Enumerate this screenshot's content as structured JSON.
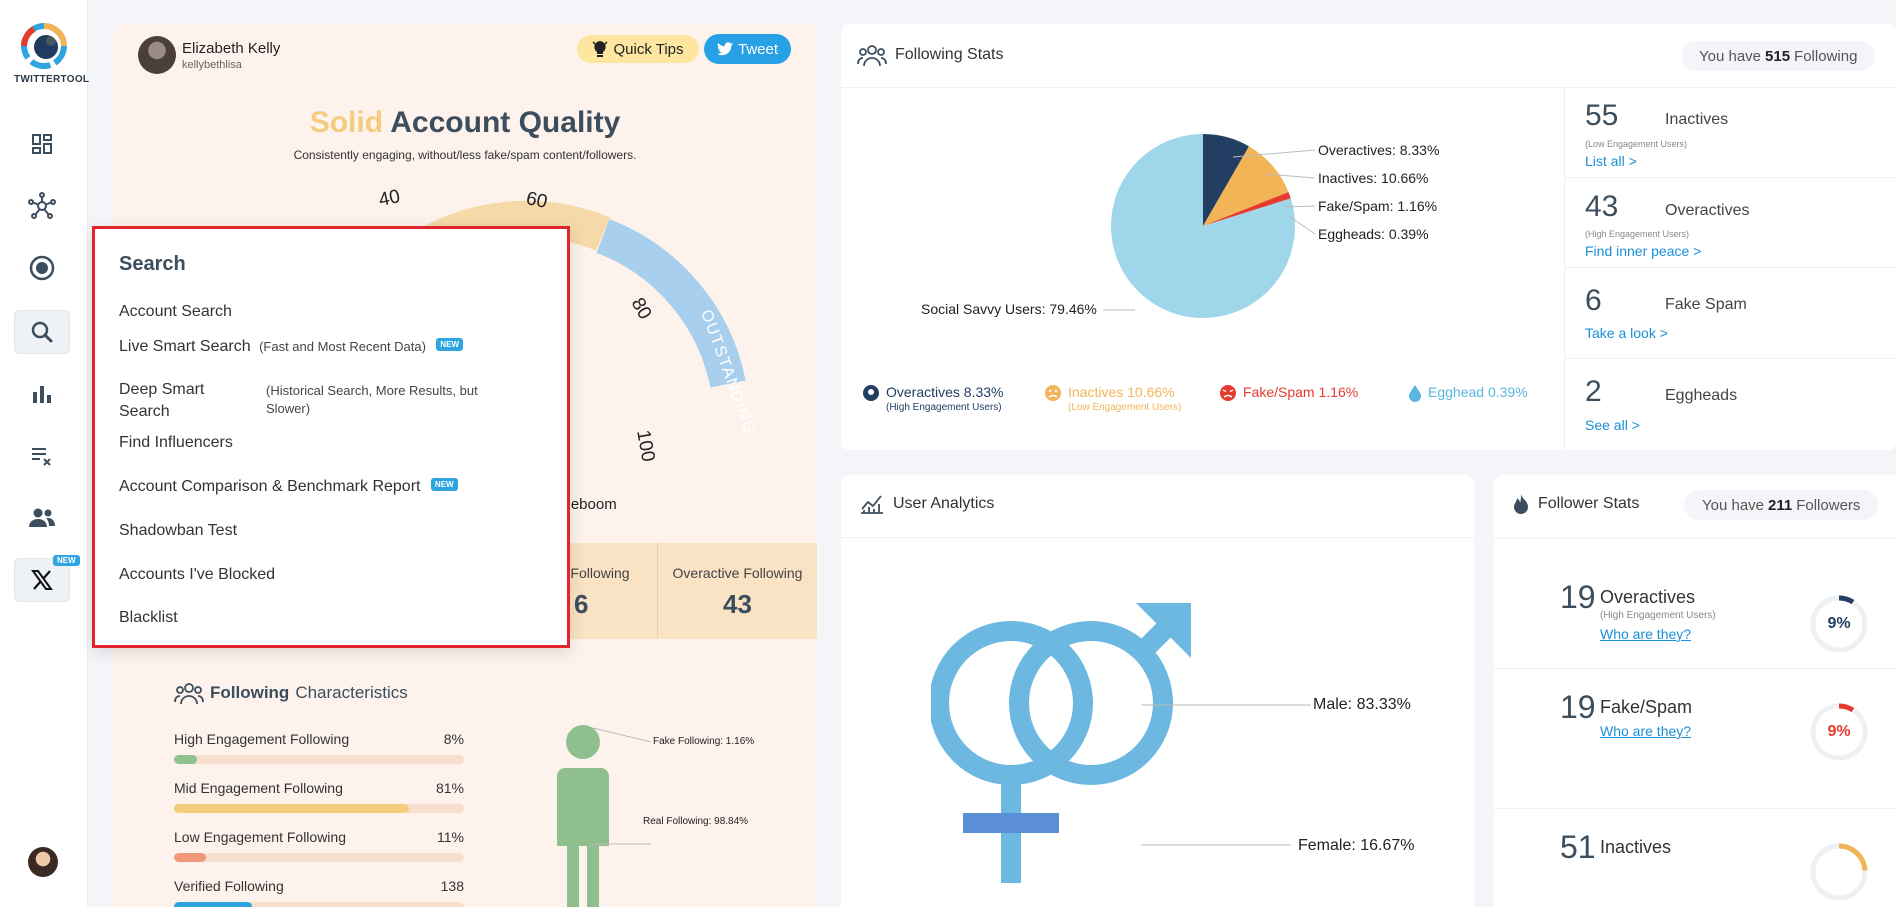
{
  "sidebar": {
    "logo_text": "TWITTERTOOL",
    "new_badge": "NEW",
    "icons": [
      "dashboard-icon",
      "network-icon",
      "target-icon",
      "search-icon",
      "bar-chart-icon",
      "list-remove-icon",
      "users-icon",
      "x-logo-icon"
    ]
  },
  "quality": {
    "user_name": "Elizabeth Kelly",
    "user_handle": "kellybethlisa",
    "quick_tips": "Quick Tips",
    "tweet": "Tweet",
    "title_highlight": "Solid",
    "title_rest": "Account Quality",
    "subtitle": "Consistently engaging, without/less fake/spam content/followers.",
    "gauge_labels": [
      "40",
      "60",
      "80",
      "100"
    ],
    "gauge_band": "OUTSTANDING",
    "circleboom_text": "rcleboom",
    "strip": [
      {
        "label": "Following",
        "value": "6"
      },
      {
        "label": "Overactive Following",
        "value": "43"
      }
    ],
    "characteristics": {
      "title_bold": "Following",
      "title_rest": "Characteristics",
      "bars": [
        {
          "label": "High Engagement Following",
          "value": "8%",
          "fill": 0.08,
          "color": "#8fc08f"
        },
        {
          "label": "Mid Engagement Following",
          "value": "81%",
          "fill": 0.81,
          "color": "#f5cc7e"
        },
        {
          "label": "Low Engagement Following",
          "value": "11%",
          "fill": 0.11,
          "color": "#f0997a"
        },
        {
          "label": "Verified Following",
          "value": "138",
          "fill": 0.27,
          "color": "#2ea5e0"
        }
      ],
      "fake_note": "Fake Following: 1.16%",
      "real_note": "Real Following: 98.84%"
    }
  },
  "following_stats": {
    "title": "Following Stats",
    "pill_pre": "You have",
    "pill_num": "515",
    "pill_post": "Following",
    "chart_data": {
      "type": "pie",
      "labels": [
        "Overactives",
        "Inactives",
        "Fake/Spam",
        "Eggheads",
        "Social Savvy Users"
      ],
      "values": [
        8.33,
        10.66,
        1.16,
        0.39,
        79.46
      ],
      "colors": [
        "#223e63",
        "#f2b457",
        "#e53a2e",
        "#a0d2e8",
        "#a0d6e9"
      ]
    },
    "pie_labels": {
      "overactives": "Overactives: 8.33%",
      "inactives": "Inactives: 10.66%",
      "fake": "Fake/Spam: 1.16%",
      "eggheads": "Eggheads: 0.39%",
      "savvy": "Social Savvy Users: 79.46%"
    },
    "legend": [
      {
        "label": "Overactives 8.33%",
        "sub": "(High Engagement Users)",
        "color": "#223e63"
      },
      {
        "label": "Inactives 10.66%",
        "sub": "(Low Engagement Users)",
        "color": "#f2b457"
      },
      {
        "label": "Fake/Spam 1.16%",
        "sub": "",
        "color": "#e53a2e"
      },
      {
        "label": "Egghead 0.39%",
        "sub": "",
        "color": "#5ab6e0"
      }
    ],
    "side": [
      {
        "num": "55",
        "label": "Inactives",
        "sub": "(Low Engagement Users)",
        "link": "List all >"
      },
      {
        "num": "43",
        "label": "Overactives",
        "sub": "(High Engagement Users)",
        "link": "Find inner peace >"
      },
      {
        "num": "6",
        "label": "Fake Spam",
        "sub": "",
        "link": "Take a look >"
      },
      {
        "num": "2",
        "label": "Eggheads",
        "sub": "",
        "link": "See all >"
      }
    ]
  },
  "user_analytics": {
    "title": "User Analytics",
    "male": "Male: 83.33%",
    "female": "Female: 16.67%"
  },
  "follower_stats": {
    "title": "Follower Stats",
    "pill_pre": "You have",
    "pill_num": "211",
    "pill_post": "Followers",
    "rows": [
      {
        "num": "19",
        "label": "Overactives",
        "sub": "(High Engagement Users)",
        "link": "Who are they?",
        "pct": "9%",
        "pct_value": 0.09,
        "color": "#223e63"
      },
      {
        "num": "19",
        "label": "Fake/Spam",
        "sub": "",
        "link": "Who are they?",
        "pct": "9%",
        "pct_value": 0.09,
        "color": "#e53a2e"
      },
      {
        "num": "51",
        "label": "Inactives",
        "sub": "",
        "link": "",
        "pct": "",
        "pct_value": 0.24,
        "color": "#f2b457"
      }
    ]
  },
  "search_menu": {
    "title": "Search",
    "new": "NEW",
    "items": [
      {
        "label": "Account Search",
        "note": ""
      },
      {
        "label": "Live Smart Search",
        "note": "(Fast and Most Recent Data)"
      },
      {
        "label": "Deep Smart Search",
        "note": "(Historical Search, More Results, but Slower)"
      },
      {
        "label": "Find Influencers",
        "note": ""
      },
      {
        "label": "Account Comparison & Benchmark Report",
        "note": ""
      },
      {
        "label": "Shadowban Test",
        "note": ""
      },
      {
        "label": "Accounts I've Blocked",
        "note": ""
      },
      {
        "label": "Blacklist",
        "note": ""
      }
    ]
  }
}
